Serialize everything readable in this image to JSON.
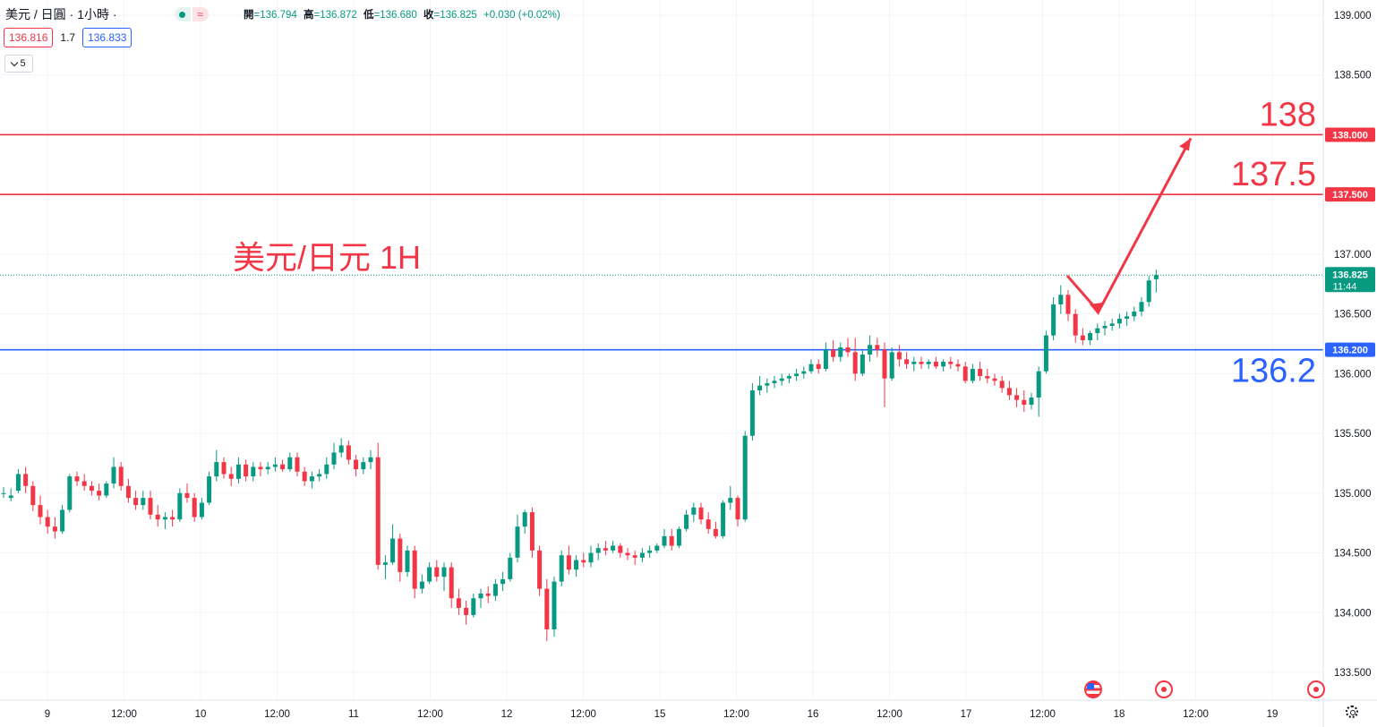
{
  "header": {
    "symbol": "美元 / 日圓",
    "interval": "· 1小時 ·",
    "ohlc": {
      "open_label": "開",
      "open": "=136.794",
      "high_label": "高",
      "high": "=136.872",
      "low_label": "低",
      "low": "=136.680",
      "close_label": "收",
      "close": "=136.825",
      "change": "+0.030 (+0.02%)"
    }
  },
  "trade": {
    "sell": "136.816",
    "spread": "1.7",
    "buy": "136.833"
  },
  "indicators_toggle": "5",
  "colors": {
    "up": "#089981",
    "down": "#f23645",
    "support": "#2962ff",
    "resistance": "#f23645",
    "grid": "#f0f3fa",
    "axis_text": "#131722"
  },
  "chart_data": {
    "type": "candlestick",
    "title": "美元/日元 1H",
    "price_axis": {
      "ticks": [
        "139.000",
        "138.500",
        "138.000",
        "137.500",
        "137.000",
        "136.500",
        "136.000",
        "135.500",
        "135.000",
        "134.500",
        "134.000",
        "133.500"
      ],
      "range": [
        133.45,
        139.1
      ]
    },
    "time_axis": {
      "ticks": [
        "9",
        "12:00",
        "10",
        "12:00",
        "11",
        "12:00",
        "12",
        "12:00",
        "15",
        "12:00",
        "16",
        "12:00",
        "17",
        "12:00",
        "18",
        "12:00",
        "19"
      ]
    },
    "last_price": {
      "value": 136.825,
      "label": "136.825",
      "countdown": "11:44"
    },
    "levels": [
      {
        "value": 138.0,
        "label": "138.000",
        "annotation": "138",
        "color": "#f23645"
      },
      {
        "value": 137.5,
        "label": "137.500",
        "annotation": "137.5",
        "color": "#f23645"
      },
      {
        "value": 136.2,
        "label": "136.200",
        "annotation": "136.2",
        "color": "#2962ff"
      }
    ],
    "forecast_path": [
      [
        137.84,
        136.82
      ],
      [
        137.9,
        136.52
      ],
      [
        138.1,
        137.97
      ]
    ],
    "candles": [
      [
        135.0,
        135.05,
        134.96,
        135.0
      ],
      [
        134.96,
        135.04,
        134.93,
        134.98
      ],
      [
        135.02,
        135.2,
        135.0,
        135.16
      ],
      [
        135.16,
        135.22,
        135.0,
        135.06
      ],
      [
        135.06,
        135.1,
        134.85,
        134.9
      ],
      [
        134.9,
        134.98,
        134.74,
        134.8
      ],
      [
        134.8,
        134.86,
        134.66,
        134.72
      ],
      [
        134.72,
        134.8,
        134.62,
        134.68
      ],
      [
        134.68,
        134.9,
        134.66,
        134.86
      ],
      [
        134.86,
        135.16,
        134.84,
        135.14
      ],
      [
        135.14,
        135.18,
        135.06,
        135.1
      ],
      [
        135.1,
        135.16,
        135.02,
        135.06
      ],
      [
        135.06,
        135.1,
        134.98,
        135.02
      ],
      [
        135.02,
        135.08,
        134.94,
        134.98
      ],
      [
        134.98,
        135.1,
        134.96,
        135.08
      ],
      [
        135.08,
        135.3,
        135.04,
        135.22
      ],
      [
        135.22,
        135.26,
        135.02,
        135.06
      ],
      [
        135.06,
        135.12,
        134.92,
        134.96
      ],
      [
        134.96,
        135.02,
        134.86,
        134.9
      ],
      [
        134.9,
        135.02,
        134.86,
        134.96
      ],
      [
        134.96,
        135.02,
        134.78,
        134.82
      ],
      [
        134.82,
        134.9,
        134.72,
        134.78
      ],
      [
        134.78,
        134.84,
        134.7,
        134.8
      ],
      [
        134.8,
        134.86,
        134.72,
        134.78
      ],
      [
        134.78,
        135.04,
        134.76,
        135.0
      ],
      [
        135.0,
        135.08,
        134.92,
        134.96
      ],
      [
        134.96,
        135.0,
        134.76,
        134.8
      ],
      [
        134.8,
        134.96,
        134.78,
        134.92
      ],
      [
        134.92,
        135.18,
        134.9,
        135.14
      ],
      [
        135.14,
        135.36,
        135.1,
        135.26
      ],
      [
        135.26,
        135.3,
        135.12,
        135.16
      ],
      [
        135.16,
        135.22,
        135.06,
        135.12
      ],
      [
        135.12,
        135.3,
        135.08,
        135.24
      ],
      [
        135.24,
        135.28,
        135.1,
        135.14
      ],
      [
        135.14,
        135.26,
        135.1,
        135.22
      ],
      [
        135.22,
        135.26,
        135.14,
        135.2
      ],
      [
        135.2,
        135.26,
        135.16,
        135.22
      ],
      [
        135.22,
        135.3,
        135.18,
        135.24
      ],
      [
        135.24,
        135.28,
        135.18,
        135.2
      ],
      [
        135.2,
        135.34,
        135.18,
        135.3
      ],
      [
        135.3,
        135.34,
        135.14,
        135.18
      ],
      [
        135.18,
        135.22,
        135.06,
        135.1
      ],
      [
        135.1,
        135.18,
        135.04,
        135.14
      ],
      [
        135.14,
        135.2,
        135.1,
        135.16
      ],
      [
        135.16,
        135.3,
        135.12,
        135.24
      ],
      [
        135.24,
        135.42,
        135.2,
        135.34
      ],
      [
        135.34,
        135.46,
        135.3,
        135.4
      ],
      [
        135.4,
        135.44,
        135.24,
        135.28
      ],
      [
        135.28,
        135.32,
        135.14,
        135.2
      ],
      [
        135.2,
        135.3,
        135.16,
        135.26
      ],
      [
        135.26,
        135.36,
        135.2,
        135.3
      ],
      [
        135.3,
        135.42,
        134.36,
        134.4
      ],
      [
        134.4,
        134.48,
        134.28,
        134.42
      ],
      [
        134.42,
        134.74,
        134.4,
        134.62
      ],
      [
        134.62,
        134.66,
        134.26,
        134.34
      ],
      [
        134.34,
        134.56,
        134.3,
        134.52
      ],
      [
        134.52,
        134.56,
        134.12,
        134.2
      ],
      [
        134.2,
        134.32,
        134.16,
        134.26
      ],
      [
        134.26,
        134.42,
        134.24,
        134.38
      ],
      [
        134.38,
        134.44,
        134.26,
        134.3
      ],
      [
        134.3,
        134.42,
        134.18,
        134.38
      ],
      [
        134.38,
        134.42,
        134.04,
        134.12
      ],
      [
        134.12,
        134.2,
        133.98,
        134.04
      ],
      [
        134.04,
        134.1,
        133.9,
        133.98
      ],
      [
        133.98,
        134.16,
        133.96,
        134.12
      ],
      [
        134.12,
        134.2,
        134.04,
        134.16
      ],
      [
        134.16,
        134.22,
        134.08,
        134.14
      ],
      [
        134.14,
        134.28,
        134.1,
        134.24
      ],
      [
        134.24,
        134.34,
        134.18,
        134.28
      ],
      [
        134.28,
        134.5,
        134.26,
        134.46
      ],
      [
        134.46,
        134.82,
        134.42,
        134.72
      ],
      [
        134.72,
        134.86,
        134.66,
        134.84
      ],
      [
        134.84,
        134.88,
        134.46,
        134.52
      ],
      [
        134.52,
        134.56,
        134.14,
        134.2
      ],
      [
        134.2,
        134.28,
        133.76,
        133.86
      ],
      [
        133.86,
        134.3,
        133.8,
        134.26
      ],
      [
        134.26,
        134.52,
        134.22,
        134.48
      ],
      [
        134.48,
        134.56,
        134.32,
        134.36
      ],
      [
        134.36,
        134.48,
        134.3,
        134.44
      ],
      [
        134.44,
        134.5,
        134.38,
        134.42
      ],
      [
        134.42,
        134.56,
        134.38,
        134.5
      ],
      [
        134.5,
        134.58,
        134.44,
        134.54
      ],
      [
        134.54,
        134.6,
        134.48,
        134.52
      ],
      [
        134.52,
        134.6,
        134.5,
        134.56
      ],
      [
        134.56,
        134.58,
        134.46,
        134.5
      ],
      [
        134.5,
        134.54,
        134.44,
        134.48
      ],
      [
        134.48,
        134.52,
        134.4,
        134.46
      ],
      [
        134.46,
        134.54,
        134.42,
        134.5
      ],
      [
        134.5,
        134.56,
        134.46,
        134.52
      ],
      [
        134.52,
        134.58,
        134.5,
        134.56
      ],
      [
        134.56,
        134.7,
        134.54,
        134.64
      ],
      [
        134.64,
        134.7,
        134.52,
        134.56
      ],
      [
        134.56,
        134.72,
        134.54,
        134.7
      ],
      [
        134.7,
        134.86,
        134.68,
        134.82
      ],
      [
        134.82,
        134.92,
        134.76,
        134.88
      ],
      [
        134.88,
        134.92,
        134.74,
        134.78
      ],
      [
        134.78,
        134.84,
        134.66,
        134.7
      ],
      [
        134.7,
        134.76,
        134.62,
        134.64
      ],
      [
        134.64,
        134.94,
        134.62,
        134.92
      ],
      [
        134.92,
        135.06,
        134.86,
        134.96
      ],
      [
        134.96,
        134.98,
        134.72,
        134.78
      ],
      [
        134.78,
        135.52,
        134.76,
        135.48
      ],
      [
        135.48,
        135.92,
        135.44,
        135.86
      ],
      [
        135.86,
        135.98,
        135.82,
        135.9
      ],
      [
        135.9,
        135.96,
        135.84,
        135.92
      ],
      [
        135.92,
        135.98,
        135.88,
        135.94
      ],
      [
        135.94,
        136.0,
        135.9,
        135.96
      ],
      [
        135.96,
        136.0,
        135.92,
        135.98
      ],
      [
        135.98,
        136.04,
        135.94,
        136.0
      ],
      [
        136.0,
        136.06,
        135.96,
        136.02
      ],
      [
        136.02,
        136.12,
        136.0,
        136.08
      ],
      [
        136.08,
        136.12,
        136.0,
        136.04
      ],
      [
        136.04,
        136.26,
        136.02,
        136.2
      ],
      [
        136.2,
        136.28,
        136.1,
        136.14
      ],
      [
        136.14,
        136.26,
        136.1,
        136.22
      ],
      [
        136.22,
        136.3,
        136.14,
        136.18
      ],
      [
        136.18,
        136.3,
        135.94,
        136.0
      ],
      [
        136.0,
        136.2,
        135.98,
        136.16
      ],
      [
        136.16,
        136.32,
        136.1,
        136.24
      ],
      [
        136.24,
        136.3,
        136.14,
        136.2
      ],
      [
        136.2,
        136.26,
        135.72,
        135.96
      ],
      [
        135.96,
        136.22,
        135.94,
        136.18
      ],
      [
        136.18,
        136.24,
        136.06,
        136.12
      ],
      [
        136.12,
        136.18,
        136.04,
        136.08
      ],
      [
        136.08,
        136.14,
        136.02,
        136.1
      ],
      [
        136.1,
        136.14,
        136.04,
        136.08
      ],
      [
        136.08,
        136.12,
        136.04,
        136.1
      ],
      [
        136.1,
        136.14,
        136.04,
        136.06
      ],
      [
        136.06,
        136.12,
        136.02,
        136.1
      ],
      [
        136.1,
        136.14,
        136.04,
        136.08
      ],
      [
        136.08,
        136.12,
        136.02,
        136.06
      ],
      [
        136.06,
        136.1,
        135.92,
        135.94
      ],
      [
        135.94,
        136.08,
        135.92,
        136.04
      ],
      [
        136.04,
        136.1,
        135.94,
        135.98
      ],
      [
        135.98,
        136.04,
        135.92,
        135.96
      ],
      [
        135.96,
        136.0,
        135.9,
        135.94
      ],
      [
        135.94,
        135.98,
        135.84,
        135.88
      ],
      [
        135.88,
        135.94,
        135.78,
        135.82
      ],
      [
        135.82,
        135.88,
        135.72,
        135.78
      ],
      [
        135.78,
        135.86,
        135.68,
        135.74
      ],
      [
        135.74,
        135.84,
        135.7,
        135.8
      ],
      [
        135.8,
        136.06,
        135.64,
        136.02
      ],
      [
        136.02,
        136.36,
        136.0,
        136.32
      ],
      [
        136.32,
        136.64,
        136.28,
        136.58
      ],
      [
        136.58,
        136.74,
        136.5,
        136.66
      ],
      [
        136.66,
        136.7,
        136.44,
        136.5
      ],
      [
        136.5,
        136.54,
        136.26,
        136.32
      ],
      [
        136.32,
        136.38,
        136.24,
        136.28
      ],
      [
        136.28,
        136.36,
        136.24,
        136.34
      ],
      [
        136.34,
        136.42,
        136.28,
        136.38
      ],
      [
        136.38,
        136.44,
        136.32,
        136.4
      ],
      [
        136.4,
        136.46,
        136.36,
        136.42
      ],
      [
        136.42,
        136.5,
        136.38,
        136.46
      ],
      [
        136.46,
        136.52,
        136.4,
        136.48
      ],
      [
        136.48,
        136.56,
        136.44,
        136.52
      ],
      [
        136.52,
        136.64,
        136.48,
        136.6
      ],
      [
        136.6,
        136.82,
        136.56,
        136.78
      ],
      [
        136.79,
        136.87,
        136.68,
        136.825
      ]
    ]
  }
}
